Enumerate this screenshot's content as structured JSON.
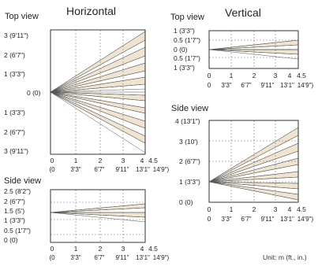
{
  "horizontal": {
    "title": "Horizontal",
    "top_view": {
      "label": "Top view",
      "y_labels": [
        "3 (9'11\")",
        "2 (6'7\")",
        "1 (3'3\")",
        "0 (0)",
        "1 (3'3\")",
        "2 (6'7\")",
        "3 (9'11\")"
      ],
      "x_labels": [
        "0",
        "1",
        "2",
        "3",
        "4",
        "4.5"
      ],
      "x_labels_ft": [
        "(0",
        "3'3\"",
        "6'7\"",
        "9'11\"",
        "13'1\"",
        "14'9\")"
      ]
    },
    "side_view": {
      "label": "Side view",
      "y_labels": [
        "2.5 (8'2\")",
        "2 (6'7\")",
        "1.5 (5')",
        "1 (3'3\")",
        "0.5 (1'7\")",
        "0 (0)"
      ],
      "x_labels": [
        "0",
        "1",
        "2",
        "3",
        "4",
        "4.5"
      ],
      "x_labels_ft": [
        "(0",
        "3'3\"",
        "6'7\"",
        "9'11\"",
        "13'1\"",
        "14'9\")"
      ]
    }
  },
  "vertical": {
    "title": "Vertical",
    "top_view": {
      "label": "Top view",
      "y_labels": [
        "1 (3'3\")",
        "0.5 (1'7\")",
        "0 (0)",
        "0.5 (1'7\")",
        "1 (3'3\")"
      ],
      "x_labels": [
        "0",
        "1",
        "2",
        "3",
        "4",
        "4.5"
      ],
      "x_labels_ft": [
        "0",
        "3'3\"",
        "6'7\"",
        "9'11\"",
        "13'1\"",
        "14'9\")"
      ]
    },
    "side_view": {
      "label": "Side view",
      "y_labels": [
        "4 (13'1\")",
        "3 (10')",
        "2 (6'7\")",
        "1 (3'3\")",
        "0 (0)"
      ],
      "x_labels": [
        "0",
        "1",
        "2",
        "3",
        "4",
        "4.5"
      ],
      "x_labels_ft": [
        "0",
        "3'3\"",
        "6'7\"",
        "9'11\"",
        "13'1\"",
        "14'9\")"
      ]
    }
  },
  "unit_note": "Unit: m (ft., in.)",
  "colors": {
    "band_fill": "#efe4cf",
    "band_stroke": "#555555",
    "frame": "#333333",
    "grid": "#777777"
  }
}
